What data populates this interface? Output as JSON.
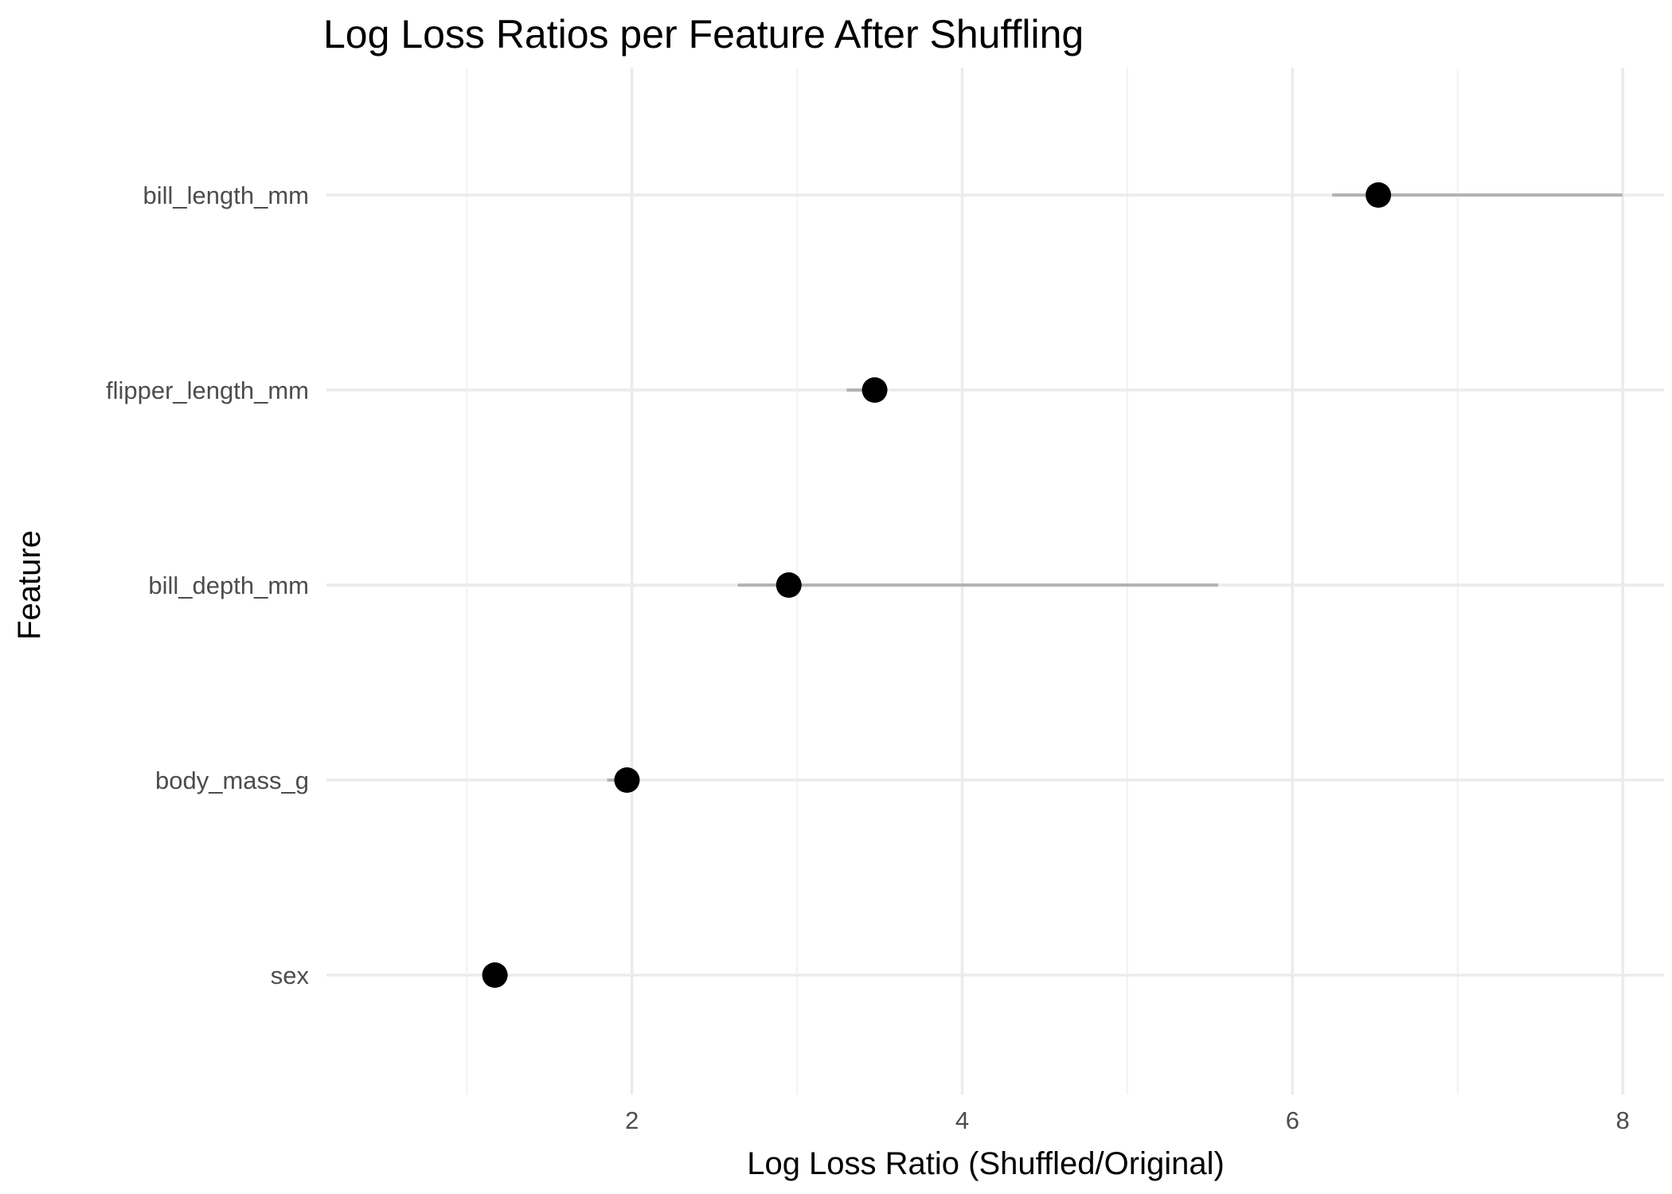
{
  "chart_data": {
    "type": "scatter",
    "title": "Log Loss Ratios per Feature After Shuffling",
    "xlabel": "Log Loss Ratio (Shuffled/Original)",
    "ylabel": "Feature",
    "categories": [
      "bill_length_mm",
      "flipper_length_mm",
      "bill_depth_mm",
      "body_mass_g",
      "sex"
    ],
    "points": [
      {
        "feature": "bill_length_mm",
        "value": 6.52,
        "low": 6.24,
        "high": 8.0
      },
      {
        "feature": "flipper_length_mm",
        "value": 3.47,
        "low": 3.3,
        "high": 3.47
      },
      {
        "feature": "bill_depth_mm",
        "value": 2.95,
        "low": 2.64,
        "high": 5.55
      },
      {
        "feature": "body_mass_g",
        "value": 1.97,
        "low": 1.85,
        "high": 1.97
      },
      {
        "feature": "sex",
        "value": 1.17,
        "low": 1.17,
        "high": 1.25
      }
    ],
    "x_ticks": [
      2,
      4,
      6,
      8
    ],
    "xlim": [
      0.15,
      8.25
    ],
    "grid": true,
    "legend": "none",
    "colors": {
      "point": "#000000",
      "interval": "#b3b3b3",
      "grid_major": "#ebebeb",
      "grid_minor": "#f2f2f2",
      "text": "#4d4d4d"
    }
  }
}
